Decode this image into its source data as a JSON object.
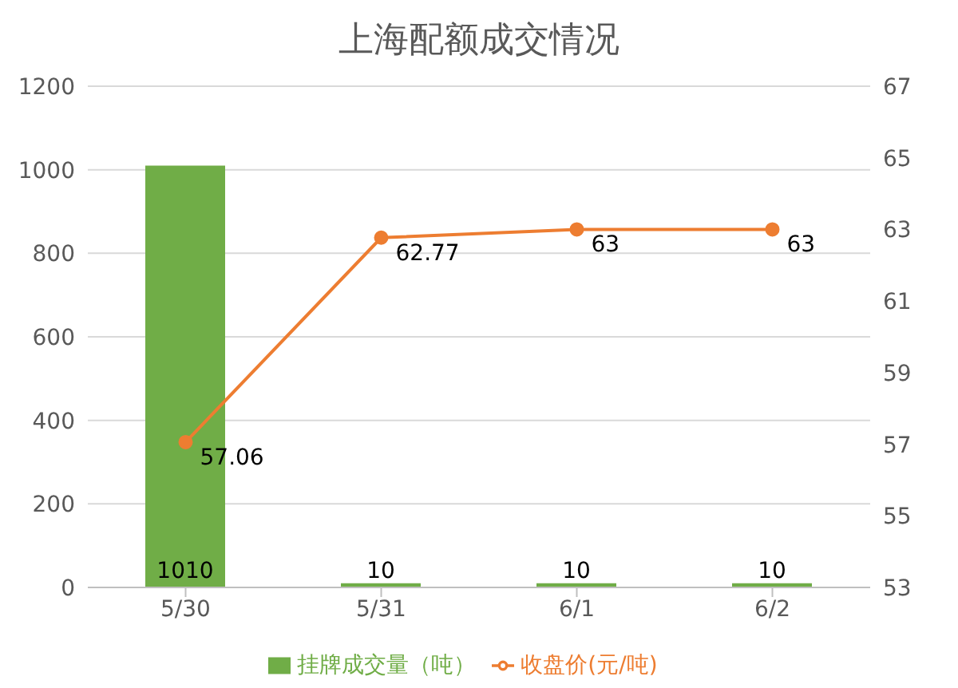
{
  "chart_data": {
    "type": "bar",
    "title": "上海配额成交情况",
    "categories": [
      "5/30",
      "5/31",
      "6/1",
      "6/2"
    ],
    "series": [
      {
        "name": "挂牌成交量（吨）",
        "color": "#70ad47",
        "values": [
          1010,
          10,
          10,
          10
        ]
      },
      {
        "name": "收盘价(元/吨)",
        "type": "line",
        "axis": "y2",
        "color": "#ed7d31",
        "values": [
          57.06,
          62.77,
          63,
          63
        ]
      }
    ],
    "ylim": [
      0,
      1200
    ],
    "yticks": [
      0,
      200,
      400,
      600,
      800,
      1000,
      1200
    ],
    "y2lim": [
      53,
      67
    ],
    "y2ticks": [
      53,
      55,
      57,
      59,
      61,
      63,
      65,
      67
    ],
    "grid": "y",
    "legend": "bottom",
    "marker": "circle",
    "data_labels": true
  }
}
